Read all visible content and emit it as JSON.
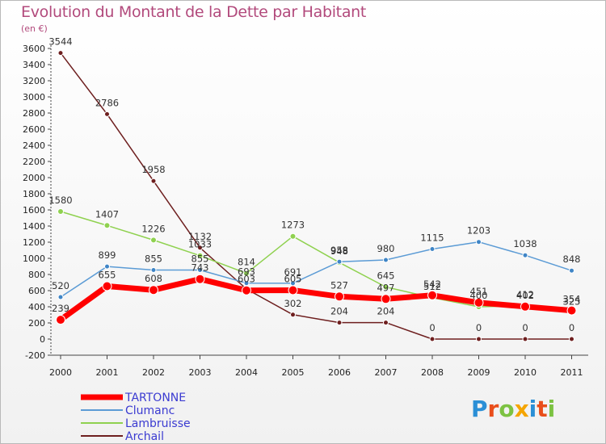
{
  "title": "Evolution du Montant de la Dette par Habitant",
  "unit_label": "(en €)",
  "watermark": "Proxiti",
  "chart_data": {
    "type": "line",
    "title": "Evolution du Montant de la Dette par Habitant",
    "ylabel": "(en €)",
    "x": [
      "2000",
      "2001",
      "2002",
      "2003",
      "2004",
      "2005",
      "2006",
      "2007",
      "2008",
      "2009",
      "2010",
      "2011"
    ],
    "ylim": [
      -200,
      3600
    ],
    "yticks": [
      -200,
      0,
      200,
      400,
      600,
      800,
      1000,
      1200,
      1400,
      1600,
      1800,
      2000,
      2200,
      2400,
      2600,
      2800,
      3000,
      3200,
      3400,
      3600
    ],
    "grid": false,
    "legend": "bottom-left",
    "series": [
      {
        "name": "TARTONNE",
        "color": "#ff0000",
        "values": [
          239,
          655,
          608,
          743,
          603,
          605,
          527,
          497,
          542,
          451,
          402,
          354
        ],
        "labels": [
          "239",
          "655",
          "608",
          "743",
          "603",
          "605",
          "527",
          "497",
          "542",
          "451",
          "402",
          "354"
        ]
      },
      {
        "name": "Clumanc",
        "color": "#5b9bd5",
        "values": [
          520,
          899,
          855,
          855,
          693,
          691,
          958,
          980,
          1115,
          1203,
          1038,
          848
        ],
        "labels": [
          "520",
          "899",
          "855",
          "855",
          "693",
          "691",
          "958",
          "980",
          "1115",
          "1203",
          "1038",
          "848"
        ]
      },
      {
        "name": "Lambruisse",
        "color": "#8fd14f",
        "values": [
          1580,
          1407,
          1226,
          1033,
          814,
          1273,
          948,
          645,
          512,
          400,
          412,
          325
        ],
        "labels": [
          "1580",
          "1407",
          "1226",
          "1033",
          "814",
          "1273",
          "948",
          "645",
          "512",
          "400",
          "412",
          "325"
        ]
      },
      {
        "name": "Archail",
        "color": "#6e1f1f",
        "values": [
          3544,
          2786,
          1958,
          1132,
          620,
          302,
          204,
          204,
          0,
          0,
          0,
          0
        ],
        "labels": [
          "3544",
          "2786",
          "1958",
          "1132",
          "",
          "302",
          "204",
          "204",
          "0",
          "0",
          "0",
          "0"
        ]
      }
    ]
  }
}
